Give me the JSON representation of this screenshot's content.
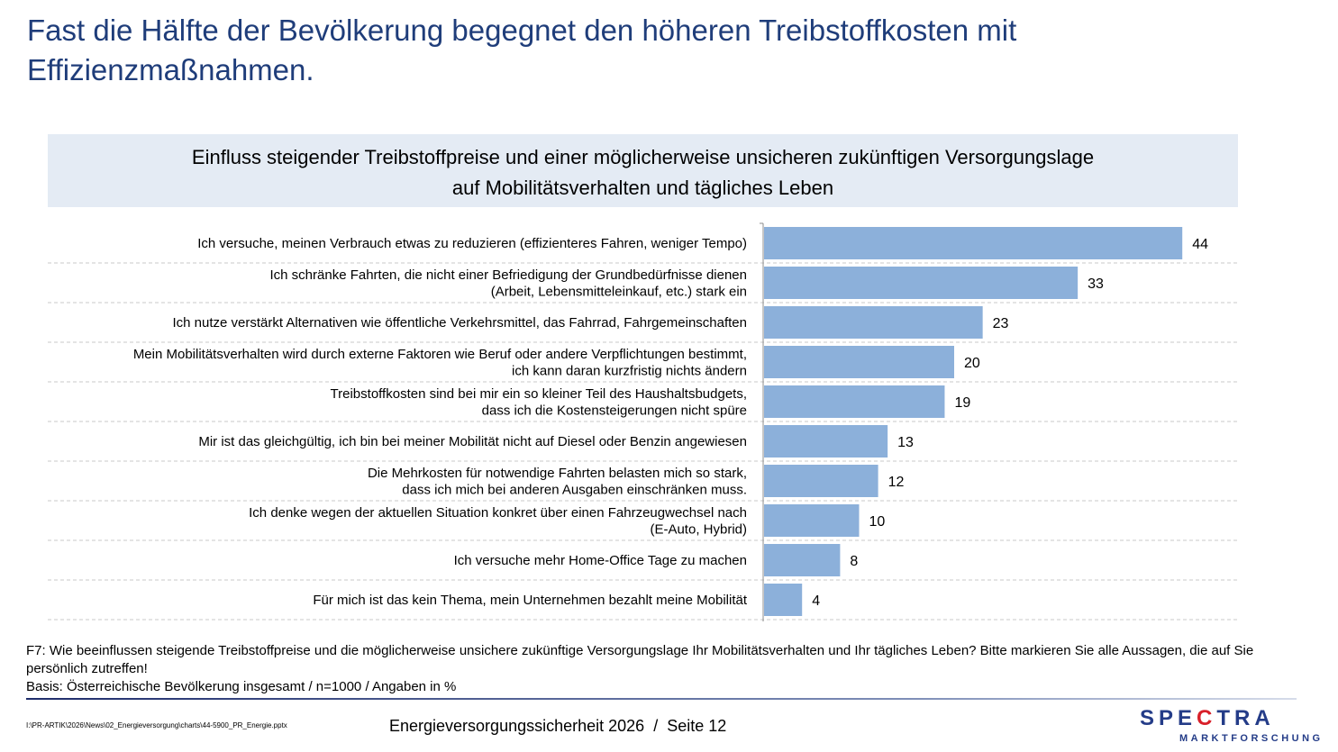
{
  "title": "Fast die Hälfte der Bevölkerung begegnet den höheren Treibstoffkosten mit Effizienzmaßnahmen.",
  "subtitle": {
    "line1": "Einfluss steigender Treibstoffpreise und einer möglicherweise unsicheren zukünftigen Versorgungslage",
    "line2": "auf Mobilitätsverhalten und tägliches Leben"
  },
  "chart_data": {
    "type": "bar",
    "orientation": "horizontal",
    "unit": "%",
    "xlim": [
      0,
      50
    ],
    "categories": [
      [
        "Ich versuche, meinen Verbrauch etwas zu reduzieren (effizienteres Fahren, weniger Tempo)"
      ],
      [
        "Ich schränke Fahrten, die nicht einer Befriedigung der Grundbedürfnisse dienen",
        "(Arbeit, Lebensmitteleinkauf, etc.) stark ein"
      ],
      [
        "Ich nutze verstärkt Alternativen wie öffentliche Verkehrsmittel, das Fahrrad, Fahrgemeinschaften"
      ],
      [
        "Mein Mobilitätsverhalten wird durch externe Faktoren wie Beruf oder andere Verpflichtungen bestimmt,",
        "ich kann daran kurzfristig nichts ändern"
      ],
      [
        "Treibstoffkosten sind bei mir ein so kleiner Teil des Haushaltsbudgets,",
        "dass ich die Kostensteigerungen nicht spüre"
      ],
      [
        "Mir ist das gleichgültig, ich bin bei meiner Mobilität nicht auf Diesel oder Benzin angewiesen"
      ],
      [
        "Die Mehrkosten für notwendige Fahrten belasten mich so stark,",
        "dass ich mich bei anderen Ausgaben einschränken muss."
      ],
      [
        "Ich denke wegen der aktuellen Situation konkret über einen Fahrzeugwechsel nach",
        "(E-Auto, Hybrid)"
      ],
      [
        "Ich versuche mehr Home-Office Tage zu machen"
      ],
      [
        "Für mich ist das kein Thema, mein Unternehmen bezahlt meine Mobilität"
      ]
    ],
    "values": [
      44,
      33,
      23,
      20,
      19,
      13,
      12,
      10,
      8,
      4
    ],
    "bar_color": "#8cb0da",
    "separator_color": "#c8c8c8"
  },
  "note": {
    "question": "F7: Wie beeinflussen steigende Treibstoffpreise und die möglicherweise unsichere zukünftige Versorgungslage Ihr Mobilitätsverhalten und Ihr tägliches Leben? Bitte markieren Sie alle Aussagen, die auf Sie persönlich zutreffen!",
    "basis": "Basis: Österreichische Bevölkerung insgesamt / n=1000 / Angaben in %"
  },
  "footer": {
    "path": "I:\\PR-ARTIK\\2026\\News\\02_Energieversorgung\\charts\\44-5900_PR_Energie.pptx",
    "title": "Energieversorgungssicherheit 2026",
    "separator": "/",
    "page": "Seite 12"
  },
  "logo": {
    "word_pre": "SPE",
    "word_accent": "C",
    "word_post": "TRA",
    "sub": "MARKTFORSCHUNG"
  }
}
